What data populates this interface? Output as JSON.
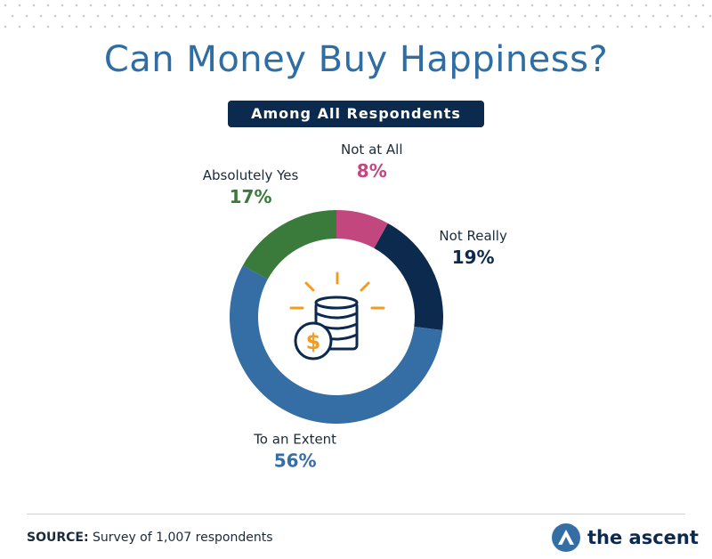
{
  "header": {
    "title": "Can Money Buy Happiness?",
    "subtitle": "Among All Respondents"
  },
  "chart_data": {
    "type": "pie",
    "style": "donut",
    "categories": [
      "Not at All",
      "Not Really",
      "To an Extent",
      "Absolutely Yes"
    ],
    "values": [
      8,
      19,
      56,
      17
    ],
    "value_labels": [
      "8%",
      "19%",
      "56%",
      "17%"
    ],
    "colors": [
      "#c2477f",
      "#0c2a4d",
      "#356ea4",
      "#3a7a3a"
    ],
    "label_colors": [
      "#c2477f",
      "#0c2a4d",
      "#356ea4",
      "#3a7a3a"
    ],
    "legend": "none",
    "center_icon": "coins-dollar-icon"
  },
  "footer": {
    "source_label": "SOURCE:",
    "source_text": "Survey of 1,007 respondents",
    "brand": "the ascent",
    "brand_icon": "ascent-logo-icon"
  }
}
